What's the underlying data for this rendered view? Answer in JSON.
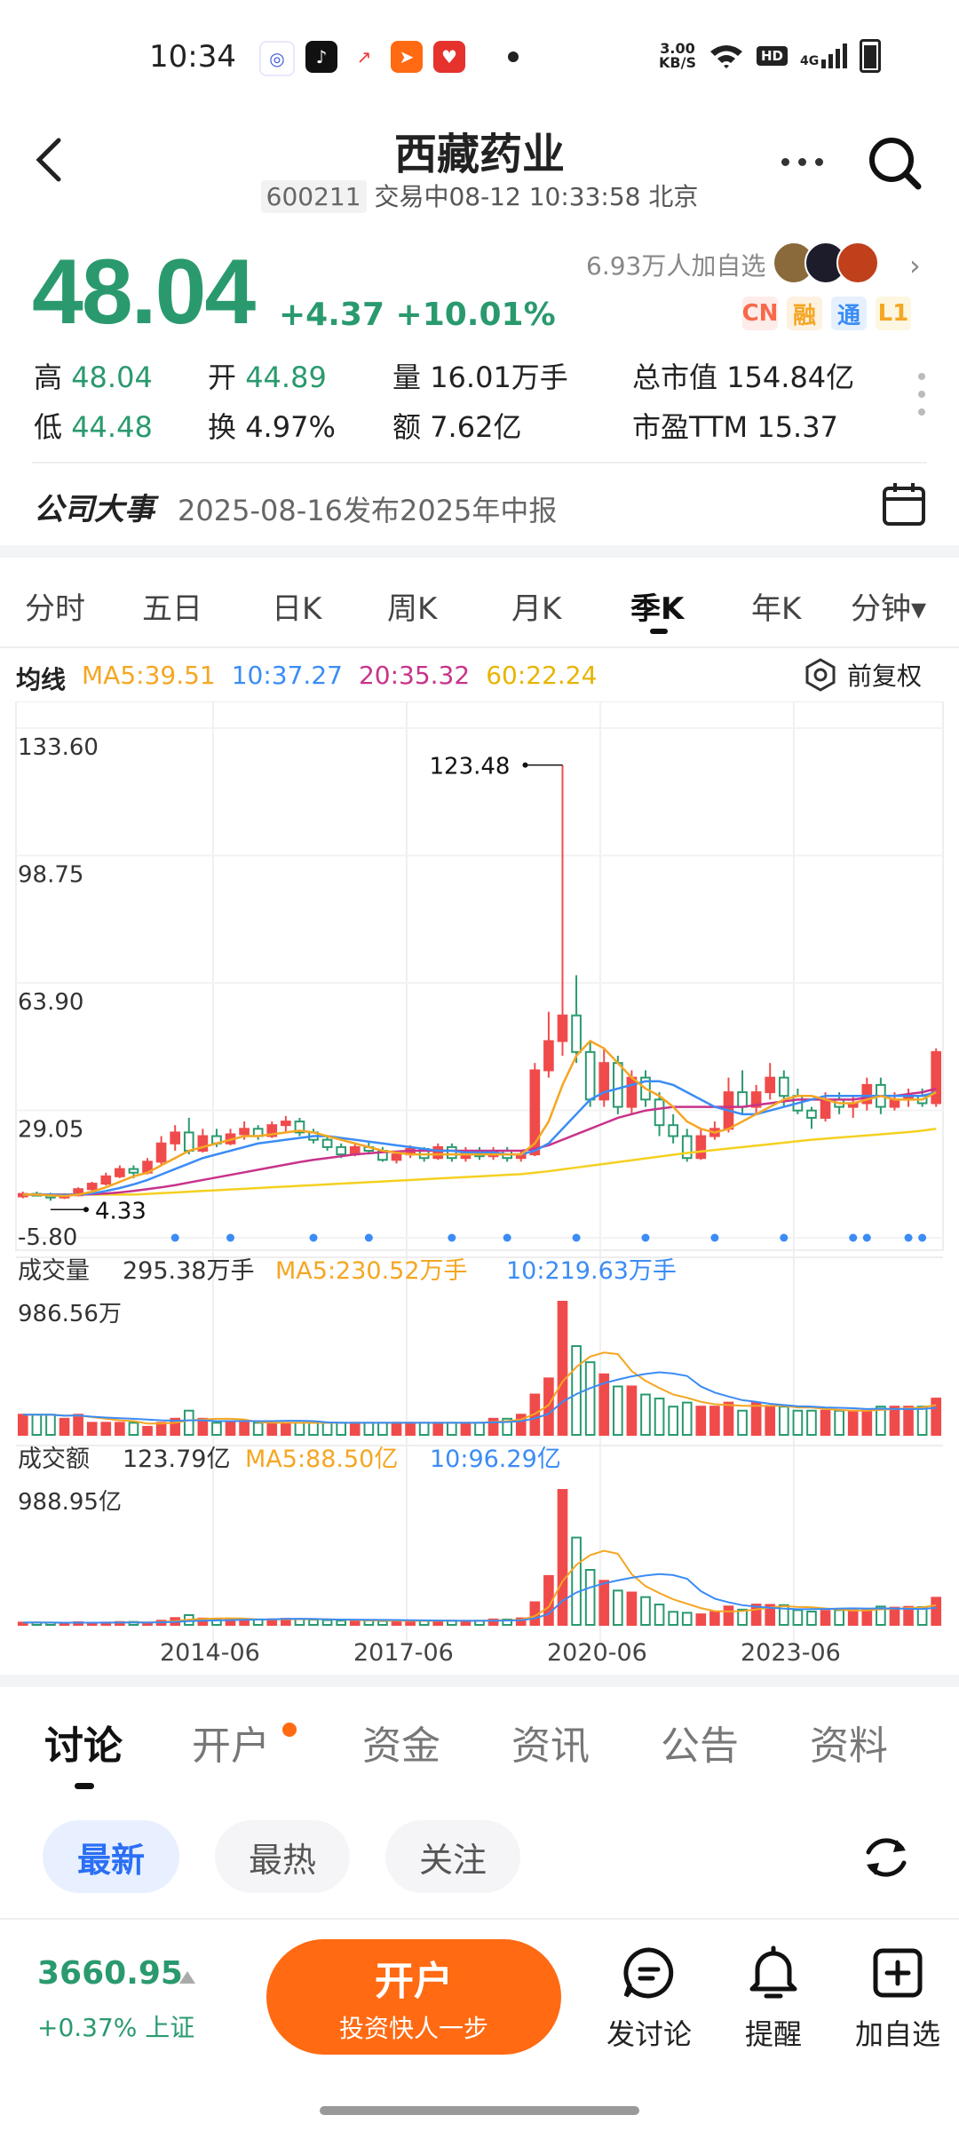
{
  "status_bar": {
    "time": "10:34",
    "net_speed": "3.00\nKB/S",
    "net_top": "3.00",
    "net_bottom": "KB/S",
    "hd": "HD",
    "signal": "4G"
  },
  "header": {
    "title": "西藏药业",
    "code": "600211",
    "status": "交易中08-12 10:33:58 北京"
  },
  "quote": {
    "price": "48.04",
    "change": "+4.37",
    "change_pct": "+10.01%",
    "watchers": "6.93万人加自选",
    "tags": [
      {
        "label": "CN",
        "color": "#f56a4a",
        "bg": "#fdecea"
      },
      {
        "label": "融",
        "color": "#f5a623",
        "bg": "#fdf1e0"
      },
      {
        "label": "通",
        "color": "#3b8cf5",
        "bg": "#e6f0fd"
      },
      {
        "label": "L1",
        "color": "#f5a623",
        "bg": "#fdf6e0"
      }
    ],
    "stats": [
      {
        "label": "高",
        "value": "48.04",
        "green": true
      },
      {
        "label": "开",
        "value": "44.89",
        "green": true
      },
      {
        "label": "量",
        "value": "16.01万手",
        "green": false
      },
      {
        "label": "总市值",
        "value": "154.84亿",
        "green": false
      },
      {
        "label": "低",
        "value": "44.48",
        "green": true
      },
      {
        "label": "换",
        "value": "4.97%",
        "green": false
      },
      {
        "label": "额",
        "value": "7.62亿",
        "green": false
      },
      {
        "label": "市盈TTM",
        "value": "15.37",
        "green": false
      }
    ]
  },
  "event": {
    "title": "公司大事",
    "text": "2025-08-16发布2025年中报"
  },
  "period_tabs": [
    "分时",
    "五日",
    "日K",
    "周K",
    "月K",
    "季K",
    "年K",
    "分钟▾"
  ],
  "active_period": 5,
  "ma": {
    "label": "均线",
    "ma5": "MA5:39.51",
    "ma10": "10:37.27",
    "ma20": "20:35.32",
    "ma60": "60:22.24",
    "adjust": "前复权"
  },
  "colors": {
    "up": "#f04b4b",
    "down": "#2a9a6e",
    "ma5": "#f5a623",
    "ma10": "#3b8cf5",
    "ma20": "#c8338a",
    "ma60": "#f5d020",
    "accent": "#ff6a13"
  },
  "chart_data": {
    "type": "candlestick",
    "price_axis": [
      "133.60",
      "98.75",
      "63.90",
      "29.05",
      "-5.80"
    ],
    "ylim": [
      -5.8,
      133.6
    ],
    "max_label": "123.48",
    "min_label": "4.33",
    "x_ticks": [
      "2014-06",
      "2017-06",
      "2020-06",
      "2023-06"
    ],
    "volume_label": "成交量",
    "volume_value": "295.38万手",
    "volume_ma5": "MA5:230.52万手",
    "volume_ma10": "10:219.63万手",
    "volume_max": "986.56万",
    "amount_label": "成交额",
    "amount_value": "123.79亿",
    "amount_ma5": "MA5:88.50亿",
    "amount_ma10": "10:96.29亿",
    "amount_max": "988.95亿",
    "candles": [
      [
        5.5,
        6.2,
        5,
        6.8,
        5
      ],
      [
        6.2,
        6.0,
        5.5,
        6.8,
        5
      ],
      [
        6.0,
        5.2,
        4.33,
        6.5,
        5
      ],
      [
        5.2,
        5.8,
        4.8,
        6.2,
        4
      ],
      [
        5.8,
        7.5,
        5.5,
        8.0,
        5
      ],
      [
        7.5,
        9.0,
        7.0,
        9.5,
        3
      ],
      [
        9.0,
        11.0,
        8.5,
        12.0,
        3
      ],
      [
        11.0,
        13.0,
        10.5,
        14.0,
        3
      ],
      [
        13.0,
        12.0,
        10.5,
        14.0,
        3
      ],
      [
        12.0,
        15.0,
        11.5,
        16.0,
        2
      ],
      [
        15.0,
        20.0,
        14.0,
        22.0,
        3
      ],
      [
        20.0,
        23.0,
        18.0,
        25.0,
        4
      ],
      [
        23.0,
        18.0,
        17.0,
        27.0,
        6
      ],
      [
        18.0,
        22.0,
        17.5,
        24.0,
        4
      ],
      [
        22.0,
        20.0,
        19.0,
        24.0,
        3
      ],
      [
        20.0,
        22.5,
        19.5,
        24.0,
        3
      ],
      [
        22.5,
        24.0,
        21.0,
        26.0,
        3
      ],
      [
        24.0,
        22.0,
        21.0,
        25.0,
        3
      ],
      [
        22.0,
        25.0,
        21.5,
        26.0,
        3
      ],
      [
        25.0,
        26.0,
        23.0,
        27.5,
        3
      ],
      [
        26.0,
        23.0,
        22.0,
        27.0,
        3
      ],
      [
        23.0,
        21.0,
        20.0,
        24.0,
        3
      ],
      [
        21.0,
        19.0,
        18.0,
        22.0,
        3
      ],
      [
        19.0,
        17.0,
        16.0,
        20.0,
        3
      ],
      [
        17.0,
        19.0,
        16.5,
        20.0,
        3
      ],
      [
        19.0,
        18.0,
        17.0,
        20.5,
        3
      ],
      [
        18.0,
        15.5,
        15.0,
        19.0,
        3
      ],
      [
        15.5,
        17.0,
        14.5,
        18.0,
        3
      ],
      [
        17.0,
        18.5,
        16.0,
        19.5,
        3
      ],
      [
        18.5,
        16.0,
        15.0,
        19.0,
        3
      ],
      [
        16.0,
        19.0,
        15.5,
        20.0,
        3
      ],
      [
        19.0,
        16.0,
        15.0,
        20.0,
        3
      ],
      [
        16.0,
        18.0,
        15.0,
        19.0,
        3
      ],
      [
        18.0,
        16.5,
        15.5,
        19.0,
        3
      ],
      [
        16.5,
        18.0,
        15.5,
        19.0,
        4
      ],
      [
        18.0,
        16.0,
        15.0,
        19.0,
        4
      ],
      [
        16.0,
        17.0,
        15.0,
        18.0,
        5
      ],
      [
        17.0,
        40.0,
        16.5,
        42.0,
        10
      ],
      [
        40.0,
        48.0,
        38.0,
        56.0,
        14
      ],
      [
        48.0,
        55.0,
        44.0,
        123.48,
        33
      ],
      [
        55.0,
        45.0,
        42.0,
        66.0,
        22
      ],
      [
        45.0,
        32.0,
        30.0,
        48.0,
        18
      ],
      [
        32.0,
        42.0,
        30.0,
        46.0,
        15
      ],
      [
        42.0,
        30.0,
        28.0,
        44.0,
        12
      ],
      [
        30.0,
        38.0,
        28.0,
        40.0,
        12
      ],
      [
        38.0,
        32.0,
        30.0,
        40.0,
        10
      ],
      [
        32.0,
        25.0,
        22.0,
        34.0,
        9
      ],
      [
        25.0,
        22.0,
        20.0,
        28.0,
        7
      ],
      [
        22.0,
        16.0,
        15.0,
        24.0,
        8
      ],
      [
        16.0,
        22.0,
        15.5,
        24.0,
        7
      ],
      [
        22.0,
        24.0,
        21.0,
        26.0,
        7
      ],
      [
        24.0,
        34.0,
        23.0,
        38.0,
        8
      ],
      [
        34.0,
        30.0,
        28.0,
        40.0,
        6
      ],
      [
        30.0,
        34.0,
        28.0,
        36.0,
        8
      ],
      [
        34.0,
        38.0,
        32.0,
        42.0,
        7
      ],
      [
        38.0,
        33.0,
        30.0,
        40.0,
        7
      ],
      [
        33.0,
        29.0,
        28.0,
        35.0,
        6
      ],
      [
        29.0,
        27.0,
        24.0,
        30.0,
        6
      ],
      [
        27.0,
        32.0,
        26.0,
        34.0,
        6
      ],
      [
        32.0,
        30.0,
        28.0,
        34.0,
        6
      ],
      [
        30.0,
        31.0,
        27.0,
        33.0,
        6
      ],
      [
        31.0,
        36.0,
        29.0,
        38.0,
        6
      ],
      [
        36.0,
        30.0,
        28.0,
        38.0,
        7
      ],
      [
        30.0,
        32.0,
        29.0,
        34.0,
        7
      ],
      [
        32.0,
        33.0,
        30.0,
        35.0,
        7
      ],
      [
        33.0,
        31.0,
        30.0,
        35.0,
        7
      ],
      [
        31.0,
        45.0,
        30.0,
        46.0,
        9
      ]
    ],
    "ma5_line": [
      6,
      6,
      5.8,
      5.6,
      6,
      6.8,
      8,
      9.5,
      11,
      12,
      14,
      16,
      18,
      19,
      20,
      21,
      22,
      22,
      22.5,
      23,
      23.5,
      23,
      22,
      21,
      20,
      19,
      18,
      17.5,
      17,
      17,
      17,
      17,
      17,
      17,
      17,
      17,
      17,
      20,
      26,
      36,
      44,
      48,
      46,
      42,
      38,
      35,
      33,
      30,
      26,
      24,
      23,
      24,
      26,
      28,
      30,
      32,
      33,
      33,
      32,
      31,
      31,
      32,
      33,
      32,
      32,
      32,
      34
    ],
    "ma10_line": [
      6,
      6,
      6,
      5.9,
      6,
      6.3,
      7,
      7.8,
      8.8,
      10,
      11.5,
      13,
      14.5,
      16,
      17,
      18,
      19,
      20,
      20.5,
      21,
      21.5,
      22,
      22,
      21.5,
      21,
      20.5,
      20,
      19.5,
      19,
      18.5,
      18,
      18,
      17.5,
      17.5,
      17.5,
      17,
      17,
      18,
      20,
      24,
      28,
      32,
      34,
      35,
      36,
      37,
      37,
      36,
      34,
      32,
      30,
      29,
      28,
      28,
      29,
      30,
      31,
      32,
      33,
      33,
      33,
      33,
      33,
      33,
      33,
      33,
      34
    ],
    "ma20_line": [
      6,
      6,
      6,
      6,
      6,
      6.1,
      6.3,
      6.6,
      7,
      7.5,
      8,
      8.6,
      9.3,
      10,
      10.7,
      11.4,
      12.1,
      12.8,
      13.5,
      14.2,
      14.9,
      15.5,
      16,
      16.5,
      17,
      17.3,
      17.6,
      17.8,
      18,
      18,
      18,
      18,
      18,
      18,
      18,
      18,
      18,
      18.5,
      19.5,
      21,
      22.5,
      24,
      25.5,
      27,
      28,
      29,
      29.5,
      30,
      30,
      30,
      30,
      30,
      30,
      30.5,
      31,
      31.5,
      32,
      32,
      32,
      32,
      32,
      32.5,
      33,
      33,
      33.5,
      34,
      35
    ],
    "ma60_line": [
      6,
      6,
      6,
      6,
      6,
      6,
      6,
      6,
      6,
      6.2,
      6.4,
      6.6,
      6.8,
      7,
      7.2,
      7.4,
      7.6,
      7.8,
      8,
      8.2,
      8.4,
      8.6,
      8.8,
      9,
      9.2,
      9.4,
      9.6,
      9.8,
      10,
      10.2,
      10.4,
      10.6,
      10.8,
      11,
      11.2,
      11.4,
      11.6,
      12,
      12.4,
      12.9,
      13.4,
      13.9,
      14.4,
      14.9,
      15.4,
      15.9,
      16.4,
      16.9,
      17.4,
      17.8,
      18.2,
      18.6,
      19,
      19.4,
      19.8,
      20.2,
      20.6,
      21,
      21.3,
      21.6,
      21.9,
      22.2,
      22.5,
      22.8,
      23.1,
      23.5,
      24
    ]
  },
  "bottom_tabs": [
    "讨论",
    "开户",
    "资金",
    "资讯",
    "公告",
    "资料"
  ],
  "filter_pills": [
    "最新",
    "最热",
    "关注"
  ],
  "footer": {
    "index_value": "3660.95",
    "index_change": "+0.37% 上证",
    "open_main": "开户",
    "open_sub": "投资快人一步",
    "actions": [
      "发讨论",
      "提醒",
      "加自选"
    ]
  }
}
